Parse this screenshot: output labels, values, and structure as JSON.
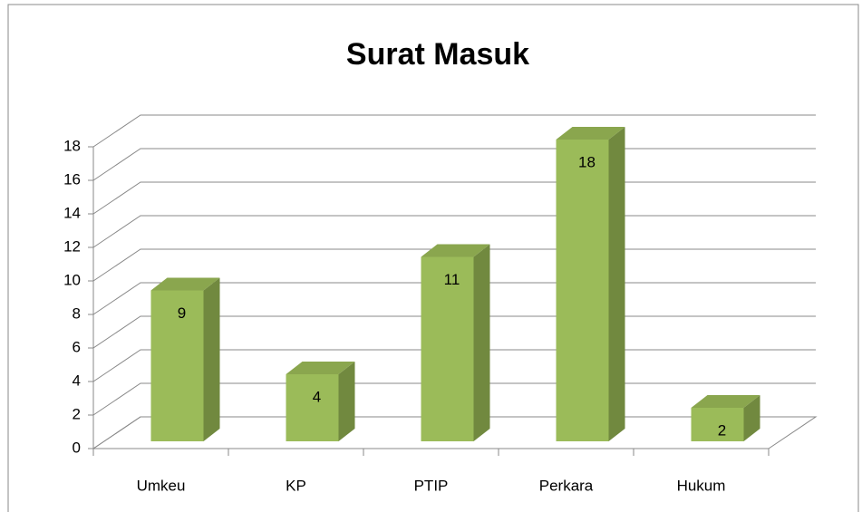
{
  "chart_data": {
    "type": "bar3d",
    "title": "Surat Masuk",
    "categories": [
      "Umkeu",
      "KP",
      "PTIP",
      "Perkara",
      "Hukum"
    ],
    "values": [
      9,
      4,
      11,
      18,
      2
    ],
    "color": "#9bbb59",
    "ylim": [
      0,
      18
    ],
    "yticks": [
      0,
      2,
      4,
      6,
      8,
      10,
      12,
      14,
      16,
      18
    ],
    "grid": true
  }
}
